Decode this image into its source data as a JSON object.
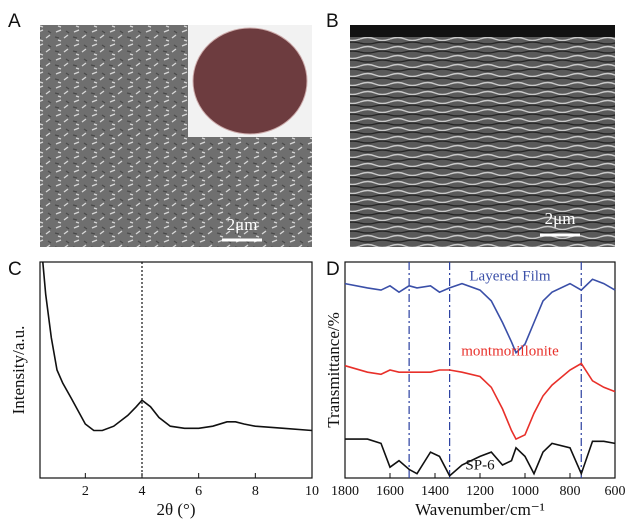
{
  "panels": [
    {
      "label": "A",
      "scale_bar": "2μm"
    },
    {
      "label": "B",
      "scale_bar": "2μm"
    }
  ],
  "chart_data": [
    {
      "type": "line",
      "label": "C",
      "xlabel": "2θ (°)",
      "ylabel": "Intensity/a.u.",
      "x": [
        0.5,
        0.6,
        0.8,
        1,
        1.2,
        1.5,
        2,
        2.3,
        2.6,
        3,
        3.5,
        3.8,
        4,
        4.3,
        4.6,
        5,
        5.5,
        6,
        6.5,
        7,
        7.3,
        7.6,
        8,
        9,
        10
      ],
      "series": [
        {
          "color": "#111111",
          "values": [
            100,
            85,
            65,
            50,
            44,
            37,
            25,
            22,
            22,
            24,
            29,
            33,
            36,
            33,
            28,
            24,
            23,
            23,
            24,
            26,
            26,
            25,
            24,
            23,
            22
          ]
        }
      ],
      "xlim": [
        0.4,
        10
      ],
      "xticks": [
        2,
        4,
        6,
        8,
        10
      ],
      "ylim": [
        0,
        100
      ],
      "vlines": [
        4
      ]
    },
    {
      "type": "line",
      "label": "D",
      "xlabel": "Wavenumber/cm⁻¹",
      "ylabel": "Transmittance/%",
      "x": [
        1800,
        1700,
        1640,
        1600,
        1560,
        1515,
        1480,
        1420,
        1380,
        1335,
        1280,
        1200,
        1150,
        1100,
        1060,
        1040,
        1000,
        960,
        920,
        880,
        800,
        750,
        700,
        650,
        600
      ],
      "series": [
        {
          "name": "Layered Film",
          "color": "#3a4fa8",
          "values": [
            90,
            88,
            87,
            89,
            86,
            89,
            88,
            89,
            86,
            88,
            90,
            87,
            82,
            72,
            63,
            58,
            62,
            72,
            82,
            86,
            90,
            87,
            92,
            90,
            87
          ]
        },
        {
          "name": "montmorillonite",
          "color": "#e8302a",
          "values": [
            52,
            49,
            48,
            50,
            49,
            49,
            49,
            49,
            50,
            50,
            49,
            47,
            42,
            32,
            22,
            18,
            20,
            30,
            38,
            43,
            50,
            53,
            45,
            42,
            40
          ]
        },
        {
          "name": "SP-6",
          "color": "#111111",
          "values": [
            18,
            18,
            16,
            5,
            8,
            4,
            2,
            12,
            10,
            1,
            6,
            10,
            12,
            6,
            8,
            14,
            10,
            2,
            12,
            16,
            14,
            2,
            17,
            17,
            16
          ]
        }
      ],
      "xlim": [
        1800,
        600
      ],
      "xticks": [
        1800,
        1600,
        1400,
        1200,
        1000,
        800,
        600
      ],
      "ylim": [
        0,
        100
      ],
      "vlines": [
        1515,
        1335,
        750
      ]
    }
  ]
}
